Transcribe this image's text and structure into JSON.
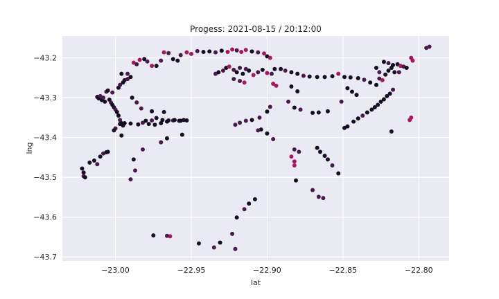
{
  "chart_data": {
    "type": "scatter",
    "title": "Progess: 2021-08-15 / 20:12:00",
    "xlabel": "lat",
    "ylabel": "lng",
    "xlim": [
      -23.035,
      -22.78
    ],
    "ylim": [
      -43.71,
      -43.145
    ],
    "grid": true,
    "x_ticks": [
      {
        "value": -23.0,
        "label": "−23.00"
      },
      {
        "value": -22.95,
        "label": "−22.95"
      },
      {
        "value": -22.9,
        "label": "−22.90"
      },
      {
        "value": -22.85,
        "label": "−22.85"
      },
      {
        "value": -22.8,
        "label": "−22.80"
      }
    ],
    "y_ticks": [
      {
        "value": -43.2,
        "label": "−43.2"
      },
      {
        "value": -43.3,
        "label": "−43.3"
      },
      {
        "value": -43.4,
        "label": "−43.4"
      },
      {
        "value": -43.5,
        "label": "−43.5"
      },
      {
        "value": -43.6,
        "label": "−43.6"
      },
      {
        "value": -43.7,
        "label": "−43.7"
      }
    ],
    "colors": {
      "dark": "#150d24",
      "mid": "#4a1a4e",
      "pink": "#a5195d"
    },
    "points": [
      [
        -23.022,
        -43.478,
        "dark"
      ],
      [
        -23.021,
        -43.488,
        "dark"
      ],
      [
        -23.021,
        -43.497,
        "mid"
      ],
      [
        -23.02,
        -43.5,
        "dark"
      ],
      [
        -23.017,
        -43.463,
        "dark"
      ],
      [
        -23.014,
        -43.458,
        "dark"
      ],
      [
        -23.012,
        -43.467,
        "mid"
      ],
      [
        -23.01,
        -43.448,
        "dark"
      ],
      [
        -23.008,
        -43.44,
        "mid"
      ],
      [
        -23.006,
        -43.437,
        "dark"
      ],
      [
        -23.005,
        -43.436,
        "dark"
      ],
      [
        -23.012,
        -43.298,
        "dark"
      ],
      [
        -23.011,
        -43.302,
        "dark"
      ],
      [
        -23.01,
        -43.296,
        "mid"
      ],
      [
        -23.009,
        -43.306,
        "dark"
      ],
      [
        -23.008,
        -43.3,
        "mid"
      ],
      [
        -23.007,
        -43.31,
        "dark"
      ],
      [
        -23.006,
        -43.285,
        "mid"
      ],
      [
        -23.005,
        -43.282,
        "dark"
      ],
      [
        -23.004,
        -43.305,
        "dark"
      ],
      [
        -23.003,
        -43.312,
        "mid"
      ],
      [
        -23.002,
        -43.318,
        "dark"
      ],
      [
        -23.001,
        -43.324,
        "dark"
      ],
      [
        -23.0,
        -43.33,
        "mid"
      ],
      [
        -22.999,
        -43.336,
        "dark"
      ],
      [
        -22.998,
        -43.345,
        "dark"
      ],
      [
        -22.997,
        -43.356,
        "mid"
      ],
      [
        -22.996,
        -43.364,
        "dark"
      ],
      [
        -22.995,
        -43.37,
        "dark"
      ],
      [
        -23.0,
        -43.377,
        "mid"
      ],
      [
        -23.001,
        -43.382,
        "dark"
      ],
      [
        -22.996,
        -43.395,
        "dark"
      ],
      [
        -22.997,
        -43.366,
        "dark"
      ],
      [
        -22.994,
        -43.364,
        "dark"
      ],
      [
        -22.99,
        -43.365,
        "dark"
      ],
      [
        -22.985,
        -43.367,
        "dark"
      ],
      [
        -22.982,
        -43.363,
        "mid"
      ],
      [
        -22.978,
        -43.366,
        "dark"
      ],
      [
        -22.974,
        -43.368,
        "dark"
      ],
      [
        -22.97,
        -43.364,
        "dark"
      ],
      [
        -22.966,
        -43.36,
        "dark"
      ],
      [
        -22.962,
        -43.357,
        "mid"
      ],
      [
        -22.958,
        -43.358,
        "dark"
      ],
      [
        -22.955,
        -43.356,
        "dark"
      ],
      [
        -22.953,
        -43.357,
        "dark"
      ],
      [
        -22.98,
        -43.358,
        "dark"
      ],
      [
        -22.976,
        -43.357,
        "mid"
      ],
      [
        -22.973,
        -43.351,
        "dark"
      ],
      [
        -22.969,
        -43.356,
        "dark"
      ],
      [
        -22.965,
        -43.357,
        "dark"
      ],
      [
        -22.961,
        -43.356,
        "dark"
      ],
      [
        -22.957,
        -43.358,
        "dark"
      ],
      [
        -22.998,
        -43.275,
        "dark"
      ],
      [
        -22.997,
        -43.268,
        "mid"
      ],
      [
        -22.995,
        -43.262,
        "dark"
      ],
      [
        -22.994,
        -43.256,
        "dark"
      ],
      [
        -22.992,
        -43.253,
        "mid"
      ],
      [
        -22.99,
        -43.248,
        "dark"
      ],
      [
        -22.996,
        -43.24,
        "dark"
      ],
      [
        -22.992,
        -43.24,
        "mid"
      ],
      [
        -22.988,
        -43.212,
        "pink"
      ],
      [
        -22.986,
        -43.216,
        "mid"
      ],
      [
        -22.984,
        -43.205,
        "pink"
      ],
      [
        -22.981,
        -43.203,
        "dark"
      ],
      [
        -22.979,
        -43.209,
        "mid"
      ],
      [
        -22.976,
        -43.22,
        "pink"
      ],
      [
        -22.973,
        -43.22,
        "dark"
      ],
      [
        -22.97,
        -43.207,
        "mid"
      ],
      [
        -22.968,
        -43.186,
        "pink"
      ],
      [
        -22.965,
        -43.188,
        "mid"
      ],
      [
        -22.962,
        -43.203,
        "dark"
      ],
      [
        -22.959,
        -43.207,
        "dark"
      ],
      [
        -22.957,
        -43.193,
        "mid"
      ],
      [
        -22.953,
        -43.186,
        "pink"
      ],
      [
        -22.95,
        -43.19,
        "pink"
      ],
      [
        -22.946,
        -43.183,
        "mid"
      ],
      [
        -22.942,
        -43.185,
        "dark"
      ],
      [
        -22.938,
        -43.184,
        "dark"
      ],
      [
        -22.934,
        -43.186,
        "mid"
      ],
      [
        -22.93,
        -43.182,
        "dark"
      ],
      [
        -22.926,
        -43.185,
        "pink"
      ],
      [
        -22.923,
        -43.179,
        "pink"
      ],
      [
        -22.92,
        -43.181,
        "mid"
      ],
      [
        -22.917,
        -43.185,
        "pink"
      ],
      [
        -22.914,
        -43.18,
        "pink"
      ],
      [
        -22.91,
        -43.184,
        "dark"
      ],
      [
        -22.906,
        -43.186,
        "mid"
      ],
      [
        -22.902,
        -43.189,
        "pink"
      ],
      [
        -22.9,
        -43.196,
        "dark"
      ],
      [
        -22.898,
        -43.2,
        "pink"
      ],
      [
        -22.934,
        -43.24,
        "mid"
      ],
      [
        -22.932,
        -43.236,
        "dark"
      ],
      [
        -22.929,
        -43.232,
        "mid"
      ],
      [
        -22.927,
        -43.225,
        "dark"
      ],
      [
        -22.925,
        -43.222,
        "pink"
      ],
      [
        -22.922,
        -43.23,
        "mid"
      ],
      [
        -22.92,
        -43.236,
        "dark"
      ],
      [
        -22.918,
        -43.225,
        "mid"
      ],
      [
        -22.916,
        -43.24,
        "dark"
      ],
      [
        -22.914,
        -43.228,
        "mid"
      ],
      [
        -22.912,
        -43.232,
        "dark"
      ],
      [
        -22.909,
        -43.243,
        "pink"
      ],
      [
        -22.906,
        -43.236,
        "mid"
      ],
      [
        -22.903,
        -43.23,
        "dark"
      ],
      [
        -22.9,
        -43.238,
        "pink"
      ],
      [
        -22.897,
        -43.24,
        "mid"
      ],
      [
        -22.922,
        -43.253,
        "mid"
      ],
      [
        -22.918,
        -43.258,
        "mid"
      ],
      [
        -22.915,
        -43.262,
        "pink"
      ],
      [
        -22.896,
        -43.265,
        "pink"
      ],
      [
        -22.894,
        -43.27,
        "pink"
      ],
      [
        -22.895,
        -43.228,
        "dark"
      ],
      [
        -22.891,
        -43.228,
        "dark"
      ],
      [
        -22.888,
        -43.232,
        "mid"
      ],
      [
        -22.884,
        -43.236,
        "dark"
      ],
      [
        -22.88,
        -43.24,
        "dark"
      ],
      [
        -22.876,
        -43.245,
        "mid"
      ],
      [
        -22.872,
        -43.247,
        "dark"
      ],
      [
        -22.867,
        -43.248,
        "dark"
      ],
      [
        -22.862,
        -43.248,
        "dark"
      ],
      [
        -22.857,
        -43.246,
        "dark"
      ],
      [
        -22.853,
        -43.24,
        "pink"
      ],
      [
        -22.849,
        -43.248,
        "dark"
      ],
      [
        -22.845,
        -43.249,
        "dark"
      ],
      [
        -22.84,
        -43.251,
        "dark"
      ],
      [
        -22.836,
        -43.255,
        "mid"
      ],
      [
        -22.832,
        -43.262,
        "dark"
      ],
      [
        -22.828,
        -43.268,
        "dark"
      ],
      [
        -22.884,
        -43.272,
        "dark"
      ],
      [
        -22.88,
        -43.284,
        "dark"
      ],
      [
        -22.886,
        -43.31,
        "mid"
      ],
      [
        -22.882,
        -43.325,
        "dark"
      ],
      [
        -22.878,
        -43.33,
        "mid"
      ],
      [
        -22.87,
        -43.338,
        "dark"
      ],
      [
        -22.866,
        -43.337,
        "dark"
      ],
      [
        -22.86,
        -43.334,
        "dark"
      ],
      [
        -22.851,
        -43.31,
        "mid"
      ],
      [
        -22.847,
        -43.276,
        "dark"
      ],
      [
        -22.844,
        -43.285,
        "dark"
      ],
      [
        -22.841,
        -43.293,
        "dark"
      ],
      [
        -22.898,
        -43.323,
        "mid"
      ],
      [
        -22.9,
        -43.335,
        "dark"
      ],
      [
        -22.905,
        -43.35,
        "mid"
      ],
      [
        -22.91,
        -43.356,
        "dark"
      ],
      [
        -22.914,
        -43.358,
        "mid"
      ],
      [
        -22.918,
        -43.363,
        "mid"
      ],
      [
        -22.921,
        -43.368,
        "mid"
      ],
      [
        -22.904,
        -43.38,
        "dark"
      ],
      [
        -22.906,
        -43.382,
        "mid"
      ],
      [
        -22.9,
        -43.39,
        "dark"
      ],
      [
        -22.896,
        -43.404,
        "mid"
      ],
      [
        -22.882,
        -43.43,
        "mid"
      ],
      [
        -22.879,
        -43.436,
        "mid"
      ],
      [
        -22.884,
        -43.448,
        "pink"
      ],
      [
        -22.882,
        -43.46,
        "pink"
      ],
      [
        -22.882,
        -43.47,
        "pink"
      ],
      [
        -22.881,
        -43.508,
        "dark"
      ],
      [
        -22.87,
        -43.532,
        "mid"
      ],
      [
        -22.866,
        -43.549,
        "mid"
      ],
      [
        -22.863,
        -43.552,
        "mid"
      ],
      [
        -22.867,
        -43.426,
        "dark"
      ],
      [
        -22.865,
        -43.436,
        "dark"
      ],
      [
        -22.862,
        -43.446,
        "dark"
      ],
      [
        -22.86,
        -43.455,
        "dark"
      ],
      [
        -22.857,
        -43.47,
        "mid"
      ],
      [
        -22.853,
        -43.49,
        "dark"
      ],
      [
        -22.908,
        -43.555,
        "dark"
      ],
      [
        -22.912,
        -43.566,
        "dark"
      ],
      [
        -22.915,
        -43.58,
        "mid"
      ],
      [
        -22.92,
        -43.601,
        "dark"
      ],
      [
        -22.923,
        -43.642,
        "mid"
      ],
      [
        -22.931,
        -43.664,
        "dark"
      ],
      [
        -22.935,
        -43.676,
        "mid"
      ],
      [
        -22.921,
        -43.68,
        "mid"
      ],
      [
        -22.945,
        -43.666,
        "dark"
      ],
      [
        -22.964,
        -43.648,
        "pink"
      ],
      [
        -22.966,
        -43.647,
        "mid"
      ],
      [
        -22.975,
        -43.646,
        "dark"
      ],
      [
        -22.99,
        -43.505,
        "mid"
      ],
      [
        -22.987,
        -43.483,
        "mid"
      ],
      [
        -22.988,
        -43.455,
        "dark"
      ],
      [
        -22.982,
        -43.43,
        "mid"
      ],
      [
        -22.97,
        -43.412,
        "mid"
      ],
      [
        -22.966,
        -43.402,
        "dark"
      ],
      [
        -22.956,
        -43.393,
        "dark"
      ],
      [
        -22.823,
        -43.21,
        "dark"
      ],
      [
        -22.82,
        -43.213,
        "mid"
      ],
      [
        -22.817,
        -43.218,
        "dark"
      ],
      [
        -22.814,
        -43.216,
        "dark"
      ],
      [
        -22.812,
        -43.22,
        "pink"
      ],
      [
        -22.81,
        -43.222,
        "mid"
      ],
      [
        -22.808,
        -43.225,
        "dark"
      ],
      [
        -22.805,
        -43.2,
        "pink"
      ],
      [
        -22.804,
        -43.207,
        "pink"
      ],
      [
        -22.818,
        -43.225,
        "dark"
      ],
      [
        -22.822,
        -43.242,
        "dark"
      ],
      [
        -22.826,
        -43.252,
        "mid"
      ],
      [
        -22.82,
        -43.232,
        "dark"
      ],
      [
        -22.816,
        -43.236,
        "dark"
      ],
      [
        -22.813,
        -43.236,
        "mid"
      ],
      [
        -22.828,
        -43.225,
        "dark"
      ],
      [
        -22.826,
        -43.236,
        "mid"
      ],
      [
        -22.824,
        -43.256,
        "pink"
      ],
      [
        -22.817,
        -43.28,
        "mid"
      ],
      [
        -22.819,
        -43.29,
        "dark"
      ],
      [
        -22.821,
        -43.296,
        "dark"
      ],
      [
        -22.823,
        -43.304,
        "dark"
      ],
      [
        -22.825,
        -43.31,
        "dark"
      ],
      [
        -22.827,
        -43.318,
        "dark"
      ],
      [
        -22.829,
        -43.324,
        "dark"
      ],
      [
        -22.831,
        -43.33,
        "dark"
      ],
      [
        -22.834,
        -43.337,
        "dark"
      ],
      [
        -22.837,
        -43.345,
        "mid"
      ],
      [
        -22.84,
        -43.352,
        "dark"
      ],
      [
        -22.843,
        -43.36,
        "dark"
      ],
      [
        -22.847,
        -43.372,
        "dark"
      ],
      [
        -22.849,
        -43.376,
        "dark"
      ],
      [
        -22.818,
        -43.385,
        "dark"
      ],
      [
        -22.805,
        -43.35,
        "pink"
      ],
      [
        -22.806,
        -43.356,
        "pink"
      ],
      [
        -22.795,
        -43.175,
        "mid"
      ],
      [
        -22.793,
        -43.172,
        "mid"
      ],
      [
        -23.002,
        -43.287,
        "mid"
      ],
      [
        -22.989,
        -43.3,
        "dark"
      ],
      [
        -22.986,
        -43.312,
        "mid"
      ],
      [
        -22.983,
        -43.327,
        "mid"
      ],
      [
        -22.976,
        -43.334,
        "dark"
      ],
      [
        -22.968,
        -43.336,
        "dark"
      ]
    ]
  }
}
